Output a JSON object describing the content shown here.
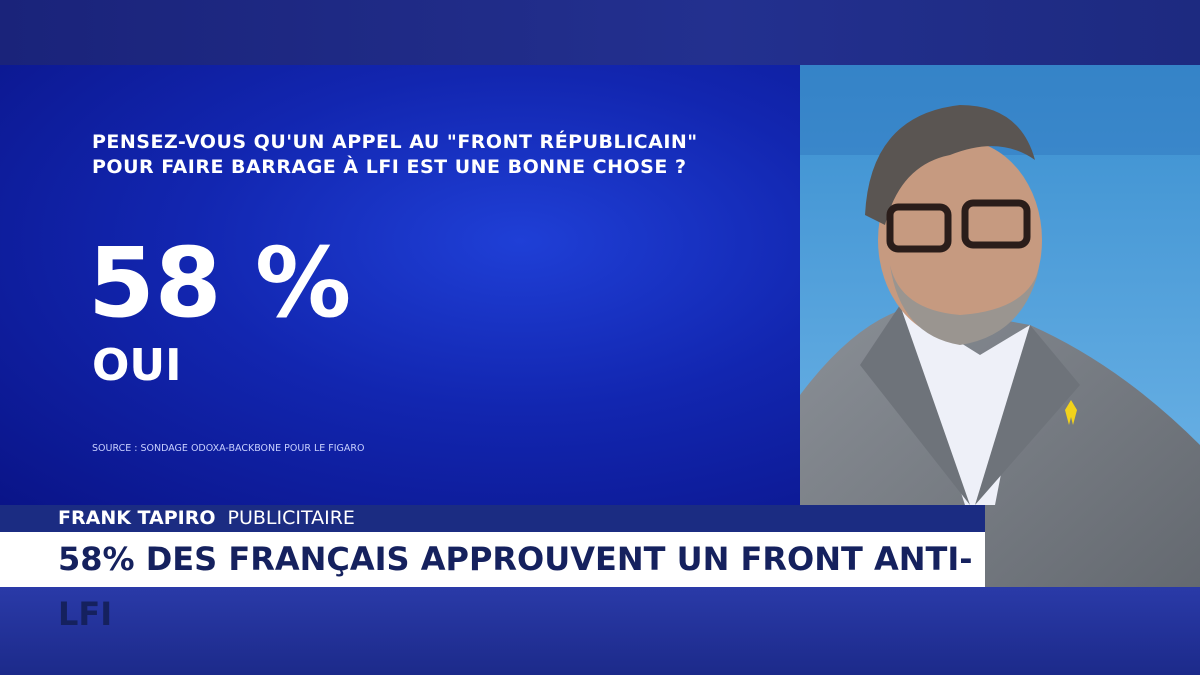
{
  "graphic": {
    "question": [
      "PENSEZ-VOUS QU'UN APPEL AU \"FRONT RÉPUBLICAIN\"",
      "POUR FAIRE BARRAGE À LFI EST UNE BONNE CHOSE ?"
    ],
    "result": "58 %",
    "answer": "OUI",
    "source": "SOURCE : SONDAGE ODOXA-BACKBONE POUR LE FIGARO"
  },
  "lower_third": {
    "name": "FRANK TAPIRO",
    "role": "PUBLICITAIRE",
    "headline": "58% DES FRANÇAIS APPROUVENT UN FRONT ANTI-LFI"
  }
}
